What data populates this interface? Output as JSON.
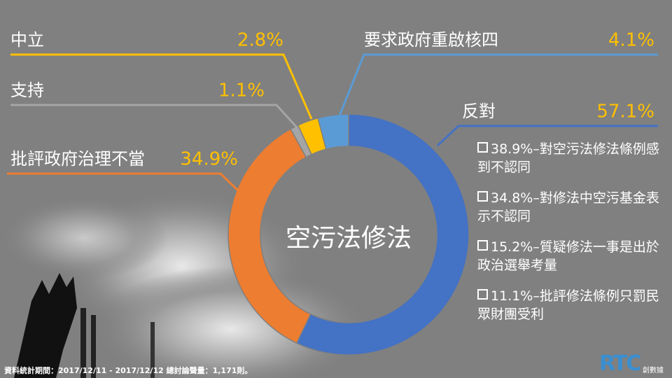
{
  "chart_data": {
    "type": "donut",
    "center_label": "空污法修法",
    "categories": [
      "反對",
      "批評政府治理不當",
      "支持",
      "中立",
      "要求政府重啟核四"
    ],
    "values": [
      57.1,
      34.9,
      1.1,
      2.8,
      4.1
    ],
    "value_labels": [
      "57.1%",
      "34.9%",
      "1.1%",
      "2.8%",
      "4.1%"
    ],
    "colors": [
      "#4472c4",
      "#ed7d31",
      "#a5a5a5",
      "#ffc000",
      "#5b9bd5"
    ],
    "notes": [
      "38.9%–對空污法修法條例感到不認同",
      "34.8%–對修法中空污基金表示不認同",
      "15.2%–質疑修法一事是出於政治選舉考量",
      "11.1%–批評修法條例只罰民眾財團受利"
    ],
    "footer": "資料統計期間：2017/12/11 - 2017/12/12  總討論聲量：1,171則。",
    "logo": "RTC",
    "logo_sub": "創數據"
  }
}
